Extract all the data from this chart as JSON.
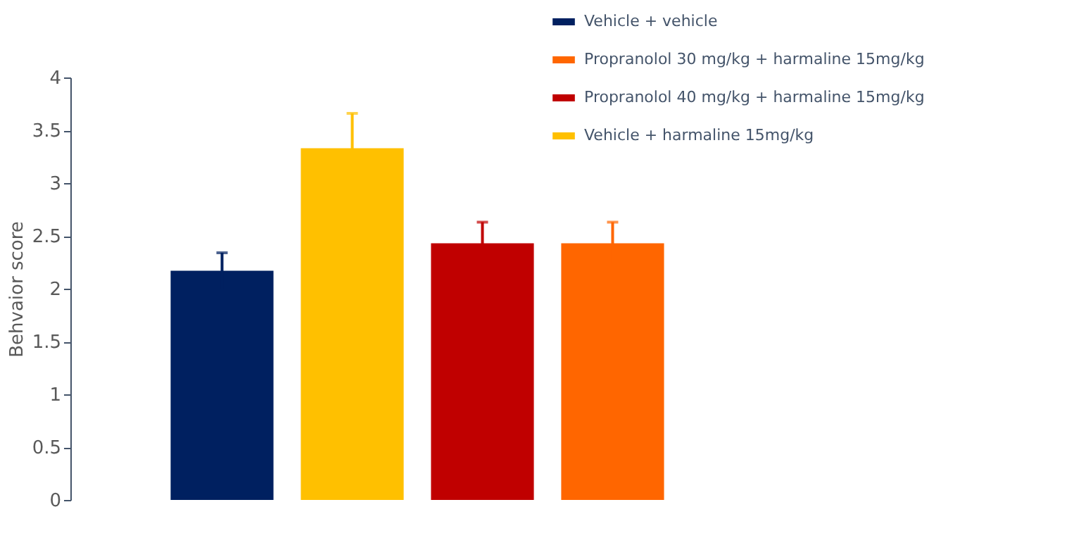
{
  "chart_data": {
    "type": "bar",
    "categories": [
      null,
      null,
      null,
      null
    ],
    "series": [
      {
        "name": "Vehicle + vehicle",
        "color": "#002060",
        "values": [
          2.17,
          null,
          null,
          null
        ],
        "errors": [
          0.17,
          null,
          null,
          null
        ]
      },
      {
        "name": "Propranolol 30 mg/kg + harmaline 15mg/kg",
        "color": "#ff6600",
        "values": [
          null,
          null,
          null,
          2.43
        ],
        "errors": [
          null,
          null,
          null,
          0.2
        ]
      },
      {
        "name": "Propranolol 40 mg/kg + harmaline 15mg/kg",
        "color": "#c00000",
        "values": [
          null,
          null,
          2.43,
          null
        ],
        "errors": [
          null,
          null,
          0.2,
          null
        ]
      },
      {
        "name": "Vehicle + harmaline 15mg/kg",
        "color": "#ffc000",
        "values": [
          null,
          3.33,
          null,
          null
        ],
        "errors": [
          null,
          0.33,
          null,
          null
        ]
      }
    ],
    "ylabel": "Behvaior score",
    "ylim": [
      0,
      4
    ],
    "yticks": [
      0,
      0.5,
      1,
      1.5,
      2,
      2.5,
      3,
      3.5,
      4
    ],
    "tick_labels": "y",
    "stacked": true,
    "legend": "top right",
    "grid": false
  }
}
